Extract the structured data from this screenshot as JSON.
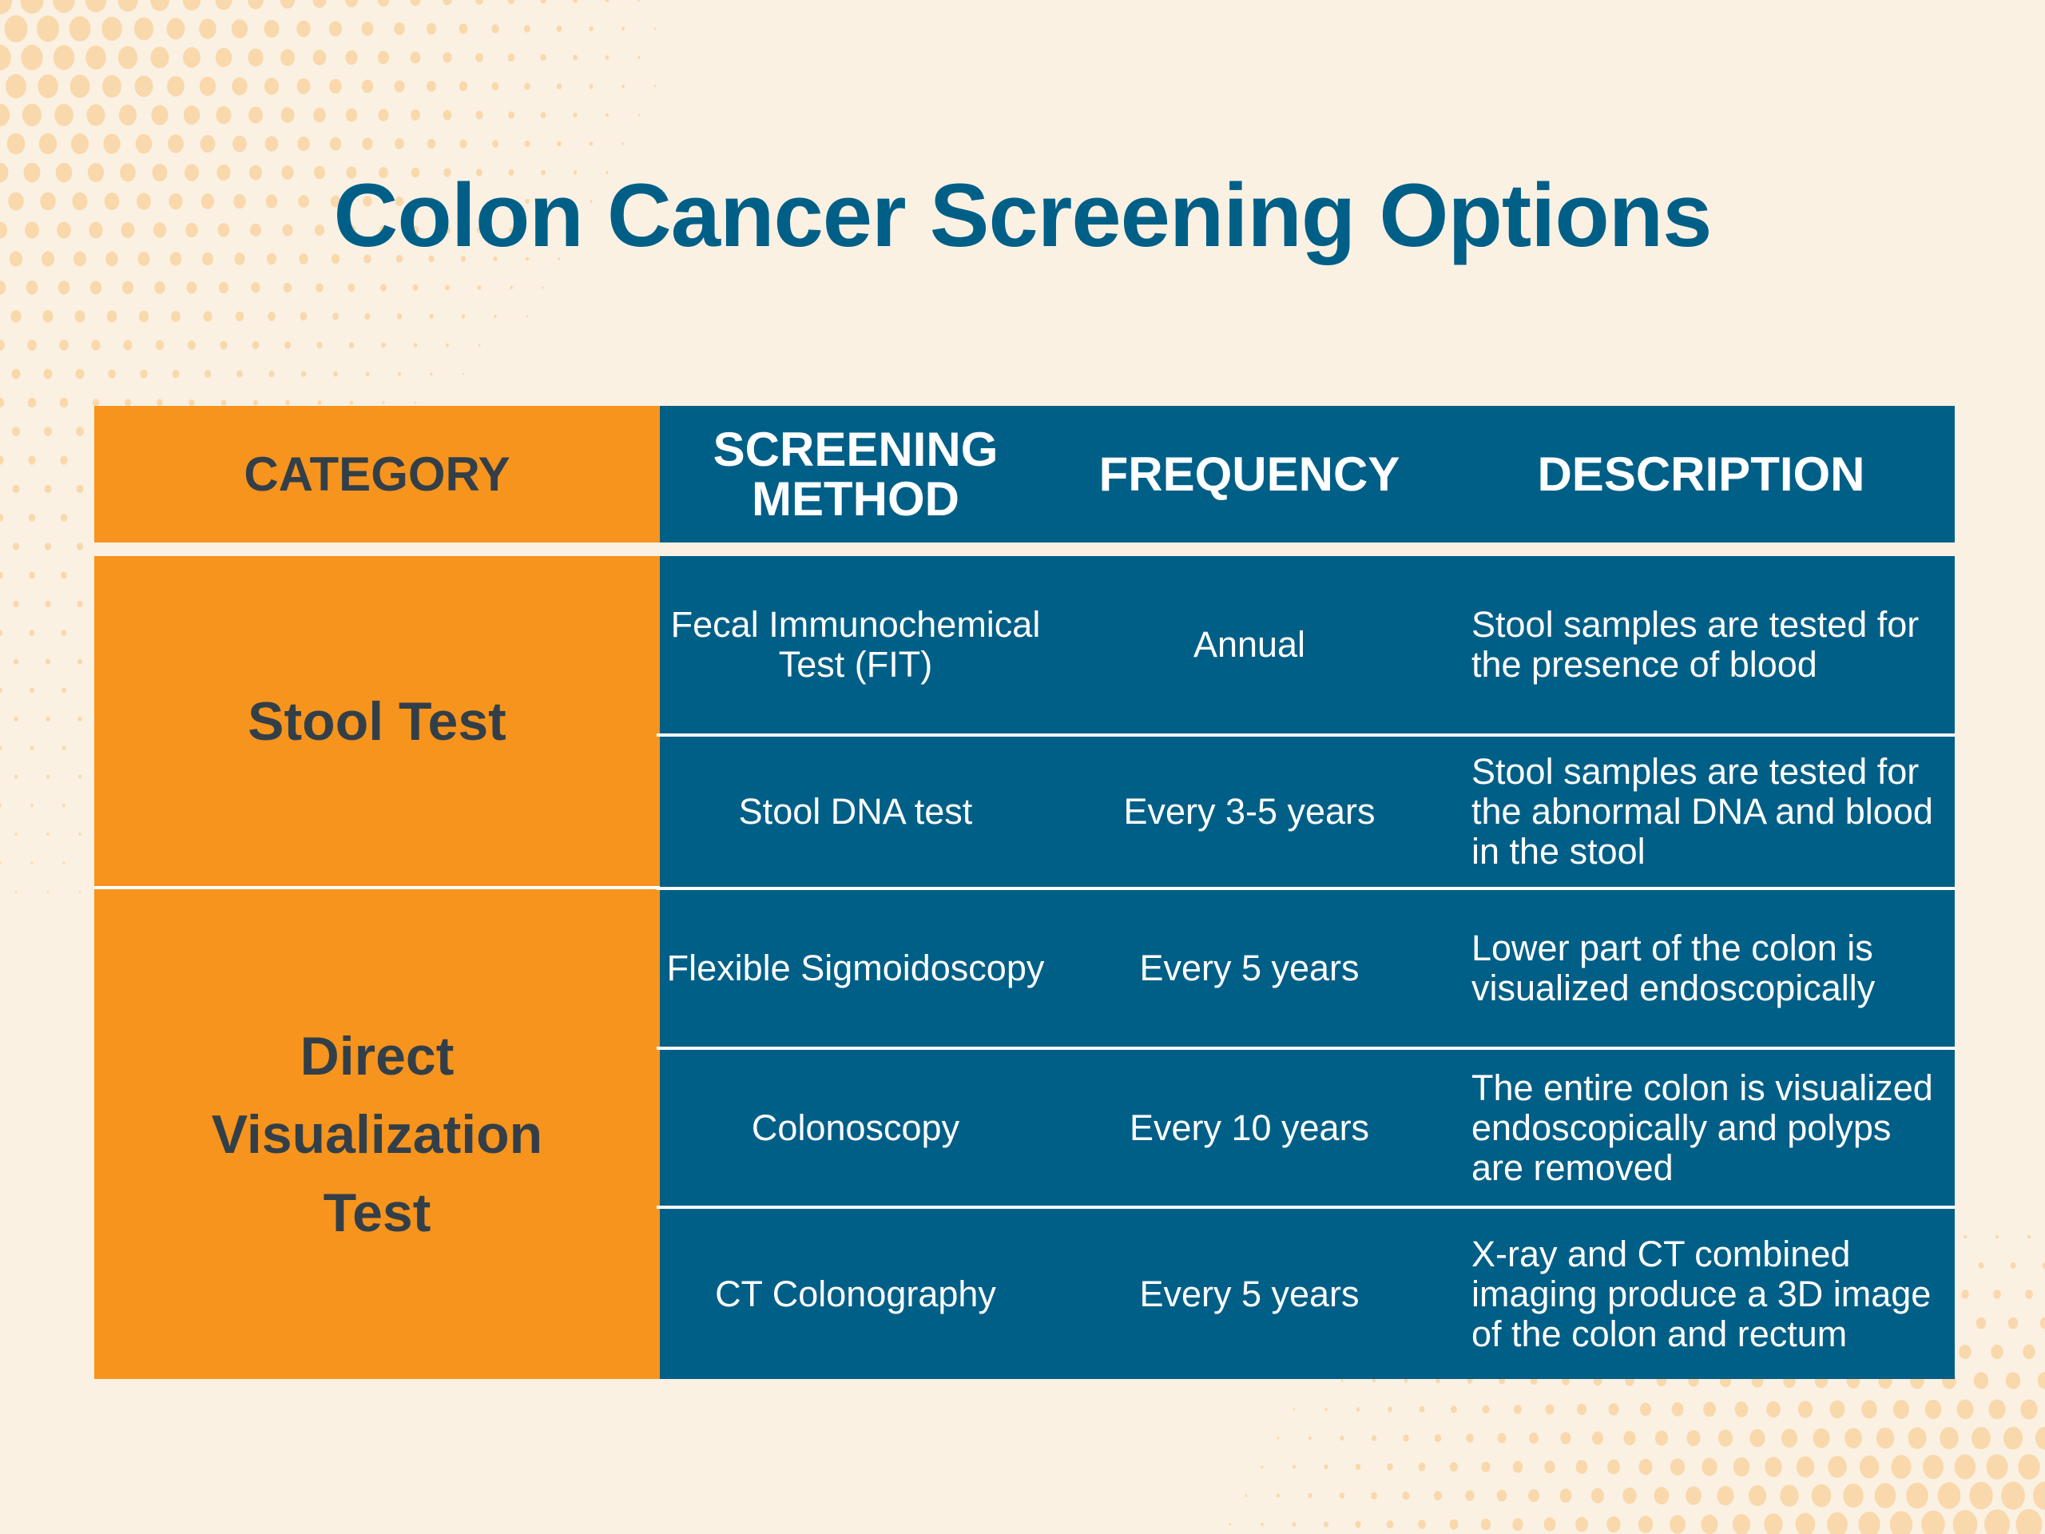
{
  "title": "Colon Cancer Screening Options",
  "colors": {
    "orange": "#F7941D",
    "blue": "#005F87",
    "background": "#FAF1E3",
    "dots": "#F9D8AC",
    "dark_text": "#333F48"
  },
  "table": {
    "headers": [
      "CATEGORY",
      "SCREENING METHOD",
      "FREQUENCY",
      "DESCRIPTION"
    ],
    "categories": [
      "Stool Test",
      "Direct Visualization Test"
    ],
    "rows": [
      {
        "method": "Fecal Immunochemical Test (FIT)",
        "frequency": "Annual",
        "description": "Stool samples are tested for the presence of blood"
      },
      {
        "method": "Stool DNA test",
        "frequency": "Every 3-5 years",
        "description": "Stool samples are tested for the abnormal DNA and blood in the stool"
      },
      {
        "method": "Flexible Sigmoidoscopy",
        "frequency": "Every 5 years",
        "description": "Lower part of the colon is visualized endoscopically"
      },
      {
        "method": "Colonoscopy",
        "frequency": "Every 10 years",
        "description": "The entire colon is visualized endoscopically and polyps are removed"
      },
      {
        "method": "CT Colonography",
        "frequency": "Every 5 years",
        "description": "X-ray and CT combined imaging produce a 3D image of the colon and rectum"
      }
    ]
  }
}
